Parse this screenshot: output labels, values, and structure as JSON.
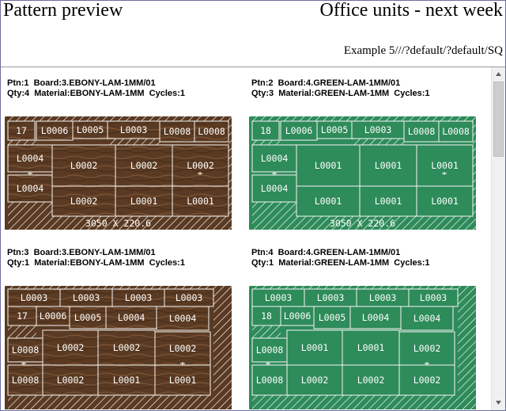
{
  "header": {
    "left_title": "Pattern preview",
    "right_title": "Office units - next week",
    "subtitle": "Example 5///?default/?default/SQ"
  },
  "scrollbar": {
    "up_icon": "triangle-up",
    "down_icon": "triangle-down"
  },
  "colors": {
    "ebony": "#5a3a22",
    "ebony_light": "#7a5336",
    "green": "#2e8b5a",
    "line": "#f5f5f5"
  },
  "patterns": [
    {
      "info_line1": "Ptn:1  Board:3.EBONY-LAM-1MM/01",
      "info_line2": "Qty:4  Material:EBONY-LAM-1MM  Cycles:1",
      "material": "ebony",
      "dimension_label": "3050 X 220.6",
      "pieces": [
        "17",
        "L0006",
        "L0005",
        "L0003",
        "L0008",
        "L0008",
        "L0004",
        "L0002",
        "L0002",
        "L0002",
        "L0004",
        "L0002",
        "L0001",
        "L0001"
      ]
    },
    {
      "info_line1": "Ptn:2  Board:4.GREEN-LAM-1MM/01",
      "info_line2": "Qty:3  Material:GREEN-LAM-1MM  Cycles:1",
      "material": "green",
      "dimension_label": "3050 X 220.6",
      "pieces": [
        "18",
        "L0006",
        "L0005",
        "L0003",
        "L0008",
        "L0008",
        "L0004",
        "L0001",
        "L0001",
        "L0001",
        "L0004",
        "L0001",
        "L0001",
        "L0001"
      ]
    },
    {
      "info_line1": "Ptn:3  Board:3.EBONY-LAM-1MM/01",
      "info_line2": "Qty:1  Material:EBONY-LAM-1MM  Cycles:1",
      "material": "ebony",
      "pieces": [
        "L0003",
        "L0003",
        "L0003",
        "L0003",
        "17",
        "L0006",
        "L0005",
        "L0004",
        "L0004",
        "L0008",
        "L0002",
        "L0002",
        "L0002",
        "L0008",
        "L0002",
        "L0001",
        "L0001"
      ]
    },
    {
      "info_line1": "Ptn:4  Board:4.GREEN-LAM-1MM/01",
      "info_line2": "Qty:1  Material:GREEN-LAM-1MM  Cycles:1",
      "material": "green",
      "pieces": [
        "L0003",
        "L0003",
        "L0003",
        "L0003",
        "18",
        "L0006",
        "L0005",
        "L0004",
        "L0004",
        "L0008",
        "L0001",
        "L0001",
        "L0002",
        "L0008",
        "L0002",
        "L0002",
        "L0002"
      ]
    }
  ]
}
